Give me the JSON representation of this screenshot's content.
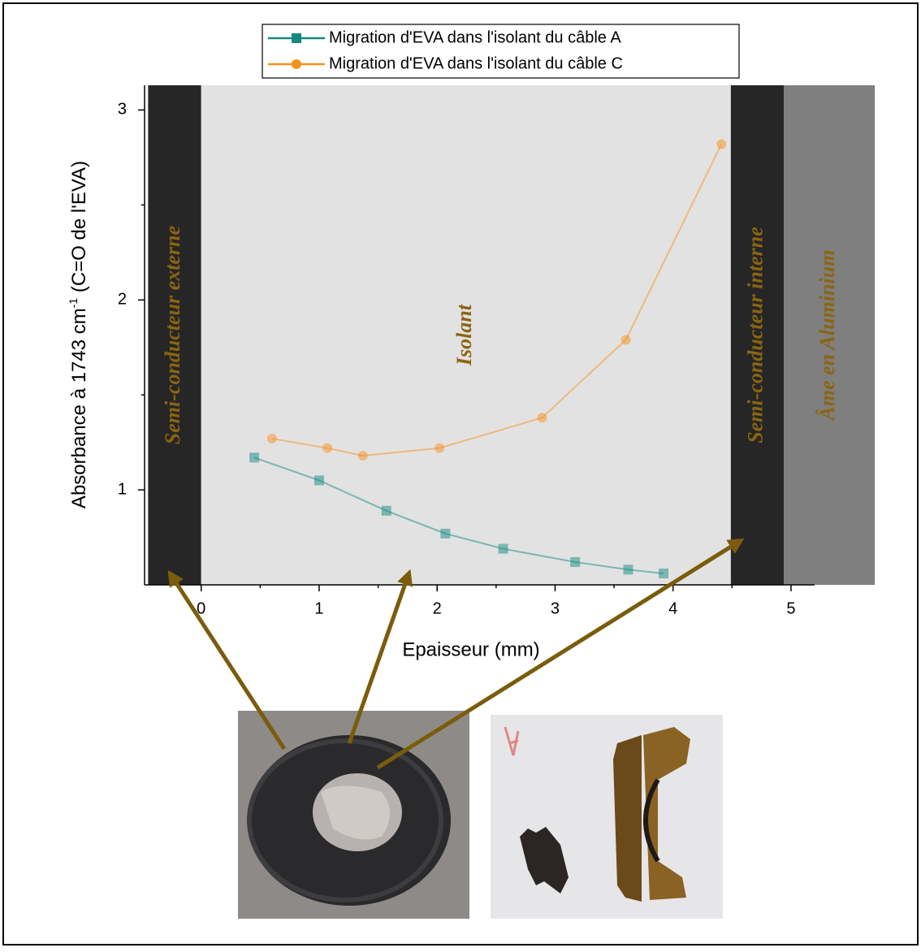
{
  "chart_data": {
    "type": "line",
    "x_label": "Epaisseur (mm)",
    "y_label": [
      "Absorbance à 1743 cm",
      "-1",
      " (C=O de l'EVA)"
    ],
    "xlim": [
      -0.48,
      5.2
    ],
    "xticks": [
      0,
      1,
      2,
      3,
      4,
      5
    ],
    "xminor": [
      0.5,
      1.5,
      2.5,
      3.5,
      4.5
    ],
    "ylim": [
      0.5,
      3.13
    ],
    "yticks": [
      1,
      2,
      3
    ],
    "yminor": [
      1.5,
      2.5
    ],
    "regions": [
      {
        "label": "Semi-conducteur externe",
        "from": -0.45,
        "to": 0,
        "color": "#262626"
      },
      {
        "label": "Isolant",
        "from": 0,
        "to": 4.49,
        "color": "#e2e2e2"
      },
      {
        "label": "Semi-conducteur interne",
        "from": 4.49,
        "to": 4.94,
        "color": "#262626"
      },
      {
        "label": "Âme en Aluminium",
        "from": 4.94,
        "to": 5.71,
        "color": "#7f7f7f"
      }
    ],
    "series": [
      {
        "name": "Migration d'EVA dans l'isolant du câble A",
        "color": "#138a7d",
        "marker": "square",
        "x": [
          0.45,
          1.0,
          1.57,
          2.07,
          2.56,
          3.17,
          3.62,
          3.92
        ],
        "values": [
          1.17,
          1.05,
          0.89,
          0.77,
          0.69,
          0.62,
          0.58,
          0.56
        ]
      },
      {
        "name": "Migration d'EVA dans l'isolant du câble C",
        "color": "#f5921e",
        "marker": "circle",
        "x": [
          0.6,
          1.07,
          1.37,
          2.02,
          2.89,
          3.6,
          4.41
        ],
        "values": [
          1.27,
          1.22,
          1.18,
          1.22,
          1.38,
          1.79,
          2.82
        ]
      }
    ]
  }
}
